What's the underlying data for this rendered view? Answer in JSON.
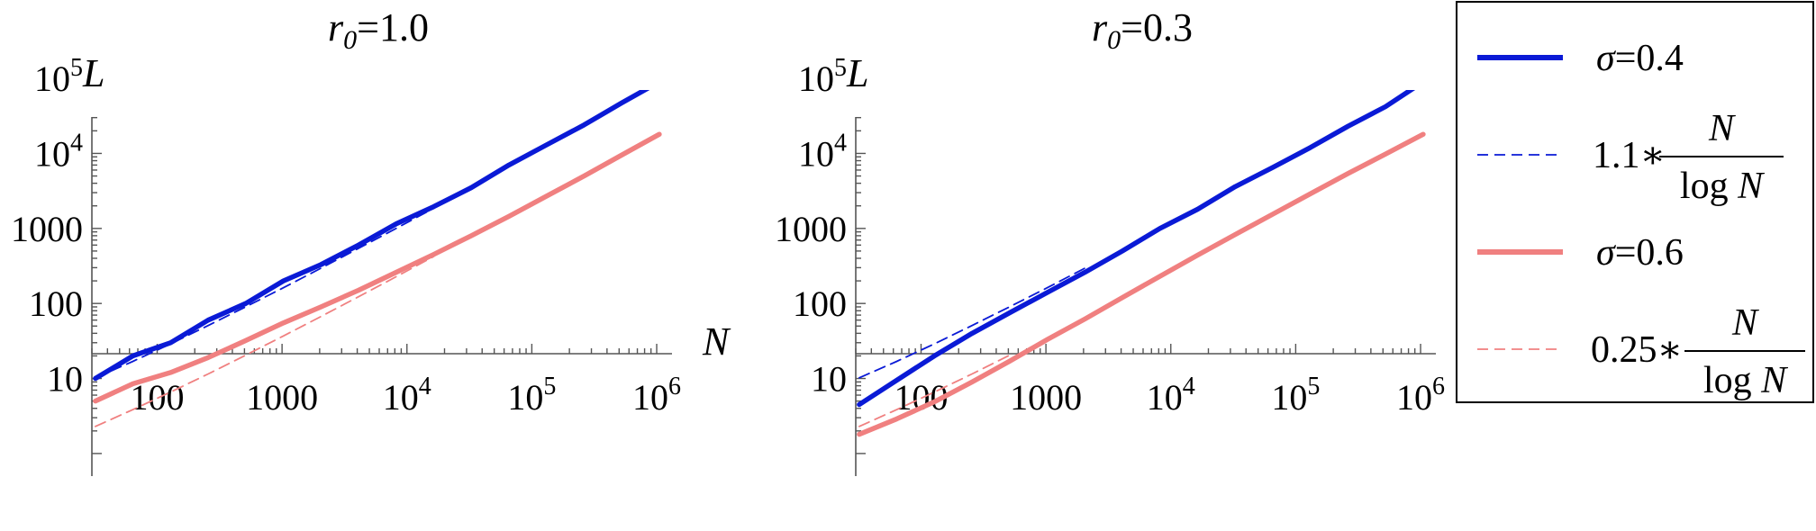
{
  "chart_data": [
    {
      "type": "line",
      "title_var": "r",
      "title_sub": "0",
      "title_rest": "=1.0",
      "xlabel": "N",
      "ylabel": "L",
      "xscale": "log",
      "yscale": "log",
      "xlim": [
        30,
        1200000
      ],
      "ylim": [
        0.5,
        200000
      ],
      "x_ticks": [
        {
          "value": 100,
          "base": "100",
          "exp": ""
        },
        {
          "value": 1000,
          "base": "1000",
          "exp": ""
        },
        {
          "value": 10000,
          "base": "10",
          "exp": "4"
        },
        {
          "value": 100000,
          "base": "10",
          "exp": "5"
        },
        {
          "value": 1000000,
          "base": "10",
          "exp": "6"
        }
      ],
      "y_ticks": [
        {
          "value": 10,
          "base": "10",
          "exp": ""
        },
        {
          "value": 100,
          "base": "100",
          "exp": ""
        },
        {
          "value": 1000,
          "base": "1000",
          "exp": ""
        },
        {
          "value": 10000,
          "base": "10",
          "exp": "4"
        },
        {
          "value": 100000,
          "base": "10",
          "exp": "5"
        }
      ],
      "series": [
        {
          "key": "sigma04",
          "color": "#0a1ad6",
          "style": "solid",
          "x": [
            32,
            64,
            128,
            256,
            512,
            1024,
            2048,
            4096,
            8192,
            16384,
            32768,
            65536,
            131072,
            262144,
            524288,
            1048576
          ],
          "y": [
            10,
            20,
            30,
            60,
            100,
            200,
            330,
            600,
            1150,
            1950,
            3500,
            7000,
            13000,
            24000,
            47000,
            90000
          ]
        },
        {
          "key": "sigma04_fit",
          "color": "#0a1ad6",
          "style": "dashed",
          "x": [
            32,
            64,
            128,
            256,
            512,
            1024,
            2048,
            4096,
            8192,
            16384
          ],
          "y": [
            10.2,
            16.9,
            29,
            50.8,
            90.3,
            162,
            295,
            542,
            1000,
            1860
          ]
        },
        {
          "key": "sigma06",
          "color": "#f08080",
          "style": "solid",
          "x": [
            32,
            64,
            128,
            256,
            512,
            1024,
            2048,
            4096,
            8192,
            16384,
            32768,
            65536,
            131072,
            262144,
            524288,
            1048576
          ],
          "y": [
            5,
            8.5,
            12,
            19,
            32,
            55,
            90,
            150,
            260,
            450,
            800,
            1450,
            2700,
            5000,
            9500,
            18000
          ]
        },
        {
          "key": "sigma06_fit",
          "color": "#f08080",
          "style": "dashed",
          "x": [
            32,
            64,
            128,
            256,
            512,
            1024,
            2048,
            4096,
            8192,
            16384
          ],
          "y": [
            2.3,
            3.85,
            6.6,
            11.5,
            20.5,
            36.9,
            67,
            123,
            227,
            423
          ]
        }
      ]
    },
    {
      "type": "line",
      "title_var": "r",
      "title_sub": "0",
      "title_rest": "=0.3",
      "xlabel": "N",
      "ylabel": "L",
      "xscale": "log",
      "yscale": "log",
      "xlim": [
        30,
        1200000
      ],
      "ylim": [
        0.5,
        200000
      ],
      "x_ticks": [
        {
          "value": 100,
          "base": "100",
          "exp": ""
        },
        {
          "value": 1000,
          "base": "1000",
          "exp": ""
        },
        {
          "value": 10000,
          "base": "10",
          "exp": "4"
        },
        {
          "value": 100000,
          "base": "10",
          "exp": "5"
        },
        {
          "value": 1000000,
          "base": "10",
          "exp": "6"
        }
      ],
      "y_ticks": [
        {
          "value": 10,
          "base": "10",
          "exp": ""
        },
        {
          "value": 100,
          "base": "100",
          "exp": ""
        },
        {
          "value": 1000,
          "base": "1000",
          "exp": ""
        },
        {
          "value": 10000,
          "base": "10",
          "exp": "4"
        },
        {
          "value": 100000,
          "base": "10",
          "exp": "5"
        }
      ],
      "series": [
        {
          "key": "sigma04",
          "color": "#0a1ad6",
          "style": "solid",
          "x": [
            32,
            64,
            128,
            256,
            512,
            1024,
            2048,
            4096,
            8192,
            16384,
            32768,
            65536,
            131072,
            262144,
            524288,
            1048576
          ],
          "y": [
            4.5,
            9.5,
            20,
            40,
            75,
            140,
            260,
            500,
            1000,
            1800,
            3600,
            6500,
            12000,
            23000,
            42000,
            90000
          ]
        },
        {
          "key": "sigma04_fit",
          "color": "#0a1ad6",
          "style": "dashed",
          "x": [
            32,
            64,
            128,
            256,
            512,
            1024,
            2048
          ],
          "y": [
            10.2,
            16.9,
            29,
            50.8,
            90.3,
            162,
            295
          ]
        },
        {
          "key": "sigma06",
          "color": "#f08080",
          "style": "solid",
          "x": [
            32,
            64,
            128,
            256,
            512,
            1024,
            2048,
            4096,
            8192,
            16384,
            32768,
            65536,
            131072,
            262144,
            524288,
            1048576
          ],
          "y": [
            1.8,
            2.9,
            4.9,
            9,
            17,
            33,
            62,
            120,
            230,
            440,
            830,
            1550,
            2900,
            5400,
            9800,
            18000
          ]
        },
        {
          "key": "sigma06_fit",
          "color": "#f08080",
          "style": "dashed",
          "x": [
            32,
            64,
            128,
            256,
            512
          ],
          "y": [
            2.3,
            3.85,
            6.6,
            11.5,
            20.5
          ]
        }
      ]
    }
  ],
  "legend": {
    "placement": "right",
    "entries": [
      {
        "key": "sigma04",
        "color": "#0a1ad6",
        "style": "solid",
        "var": "σ",
        "label": "=0.4"
      },
      {
        "key": "sigma04_fit",
        "color": "#0a1ad6",
        "style": "dashed",
        "coef": "1.1∗",
        "num": "N",
        "den_fn": "log",
        "den_var": "N"
      },
      {
        "key": "sigma06",
        "color": "#f08080",
        "style": "solid",
        "var": "σ",
        "label": "=0.6"
      },
      {
        "key": "sigma06_fit",
        "color": "#f08080",
        "style": "dashed",
        "coef": "0.25∗",
        "num": "N",
        "den_fn": "log",
        "den_var": "N"
      }
    ]
  }
}
